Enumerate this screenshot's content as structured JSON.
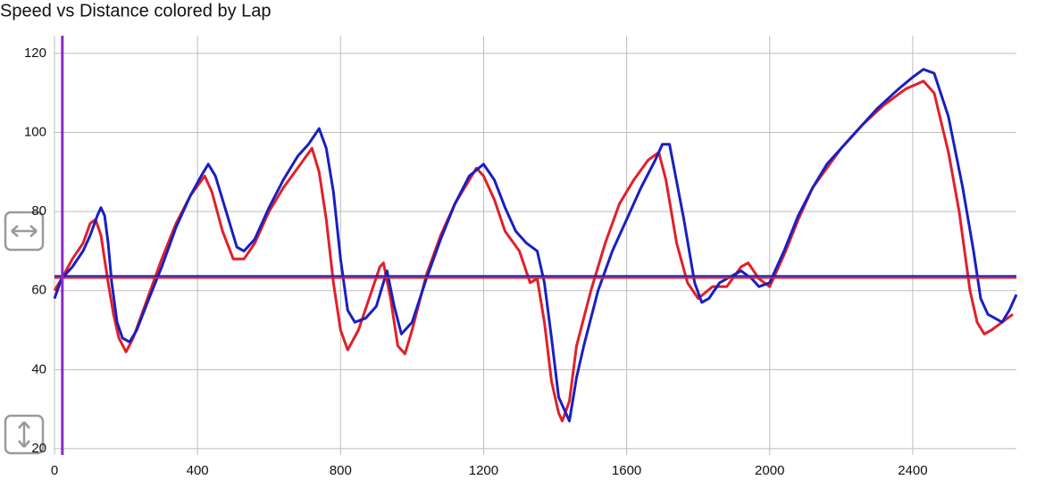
{
  "chart_data": {
    "type": "line",
    "title": "Speed vs Distance colored by Lap",
    "xlim": [
      0,
      2690
    ],
    "ylim": [
      18.4,
      124.5
    ],
    "xticks": [
      0,
      400,
      800,
      1200,
      1600,
      2000,
      2400
    ],
    "yticks": [
      20,
      40,
      60,
      80,
      100,
      120
    ],
    "grid": true,
    "series": [
      {
        "color": "#e0202a",
        "x": [
          0,
          20,
          50,
          80,
          100,
          115,
          130,
          150,
          165,
          180,
          200,
          220,
          260,
          300,
          340,
          380,
          420,
          440,
          470,
          500,
          530,
          560,
          600,
          640,
          680,
          720,
          740,
          760,
          780,
          800,
          820,
          850,
          880,
          910,
          920,
          940,
          960,
          980,
          1000,
          1040,
          1080,
          1120,
          1160,
          1180,
          1200,
          1230,
          1260,
          1300,
          1330,
          1350,
          1370,
          1390,
          1410,
          1420,
          1440,
          1460,
          1500,
          1540,
          1580,
          1620,
          1660,
          1690,
          1710,
          1740,
          1770,
          1800,
          1840,
          1880,
          1920,
          1940,
          1970,
          2000,
          2040,
          2080,
          2120,
          2160,
          2200,
          2260,
          2320,
          2380,
          2430,
          2460,
          2500,
          2530,
          2560,
          2580,
          2600,
          2620,
          2650,
          2680
        ],
        "values": [
          60,
          63,
          68,
          72,
          77,
          78,
          74,
          62,
          54,
          48,
          44.5,
          48,
          58,
          68,
          77,
          84,
          89,
          85,
          75,
          68,
          68,
          72,
          80,
          86,
          91,
          96,
          90,
          78,
          62,
          50,
          45,
          50,
          58,
          66,
          67,
          58,
          46,
          44,
          50,
          64,
          74,
          82,
          88,
          91,
          89,
          83,
          75,
          70,
          62,
          63,
          52,
          37,
          29,
          27,
          32,
          46,
          60,
          72,
          82,
          88,
          93,
          95,
          88,
          72,
          62,
          58,
          61,
          61,
          66,
          67,
          63,
          61,
          69,
          78,
          86,
          91,
          96,
          102,
          107,
          111,
          113,
          110,
          95,
          80,
          60,
          52,
          49,
          50,
          52,
          54
        ]
      },
      {
        "color": "#1a1fc0",
        "x": [
          0,
          20,
          50,
          80,
          100,
          120,
          130,
          140,
          150,
          160,
          175,
          190,
          210,
          230,
          260,
          300,
          340,
          380,
          410,
          430,
          450,
          480,
          510,
          530,
          560,
          600,
          640,
          680,
          710,
          740,
          760,
          780,
          800,
          820,
          840,
          870,
          900,
          930,
          950,
          970,
          1000,
          1040,
          1080,
          1120,
          1160,
          1200,
          1230,
          1260,
          1290,
          1320,
          1350,
          1370,
          1390,
          1410,
          1430,
          1440,
          1460,
          1480,
          1520,
          1560,
          1600,
          1640,
          1680,
          1700,
          1720,
          1760,
          1790,
          1810,
          1830,
          1860,
          1900,
          1920,
          1950,
          1970,
          2000,
          2040,
          2080,
          2120,
          2160,
          2200,
          2240,
          2300,
          2360,
          2400,
          2430,
          2460,
          2500,
          2540,
          2570,
          2590,
          2610,
          2630,
          2650,
          2670,
          2690
        ],
        "values": [
          58,
          63,
          66,
          70,
          74,
          79,
          81,
          79,
          72,
          62,
          52,
          48,
          47,
          50,
          57,
          66,
          76,
          84,
          89,
          92,
          89,
          80,
          71,
          70,
          73,
          81,
          88,
          94,
          97,
          101,
          96,
          85,
          68,
          55,
          52,
          53,
          56,
          65,
          56,
          49,
          52,
          63,
          73,
          82,
          89,
          92,
          88,
          81,
          75,
          72,
          70,
          62,
          48,
          33,
          29,
          27,
          38,
          46,
          60,
          70,
          78,
          86,
          93,
          97,
          97,
          78,
          62,
          57,
          58,
          62,
          64,
          65,
          63,
          61,
          62,
          70,
          79,
          86,
          92,
          96,
          100,
          106,
          111,
          114,
          116,
          115,
          104,
          86,
          70,
          58,
          54,
          53,
          52,
          55,
          59
        ]
      }
    ],
    "reference_lines": [
      {
        "axis": "y",
        "value": 63.2,
        "color": "#e0202a"
      },
      {
        "axis": "y",
        "value": 63.7,
        "color": "#1a1fc0"
      },
      {
        "axis": "x",
        "value": 22,
        "color": "#8a2bc8"
      }
    ]
  }
}
